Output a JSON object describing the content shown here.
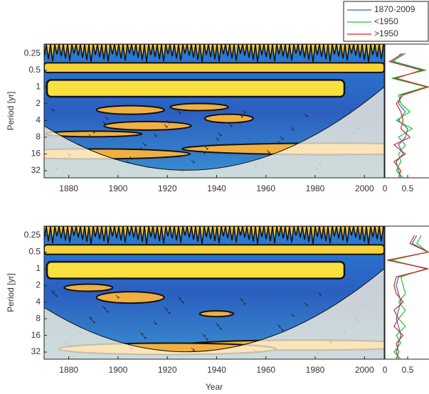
{
  "chart_data": [
    {
      "type": "heatmap",
      "y_label": "Period [yr]",
      "xlim": [
        1870,
        2008
      ],
      "ylim": [
        0.17,
        43
      ],
      "yscale": "log",
      "xticks": [
        1880,
        1900,
        1920,
        1940,
        1960,
        1980,
        2000
      ],
      "yticks": [
        0.25,
        0.5,
        1,
        2,
        4,
        8,
        16,
        32
      ]
    },
    {
      "type": "line",
      "xlim": [
        0,
        1
      ],
      "ylim": [
        0.17,
        43
      ],
      "yscale": "log",
      "xticks": [
        0,
        0.5
      ],
      "y": [
        0.25,
        0.35,
        0.5,
        0.7,
        1,
        1.4,
        2,
        2.8,
        4,
        5.6,
        8,
        11,
        16,
        22,
        32,
        43
      ],
      "legend": "upper right",
      "series": [
        {
          "name": "1870-2009",
          "color": "#1f6fc0",
          "values": [
            0.45,
            0.15,
            0.85,
            0.2,
            0.95,
            0.35,
            0.3,
            0.45,
            0.3,
            0.5,
            0.45,
            0.3,
            0.4,
            0.25,
            0.3,
            0.35
          ]
        },
        {
          "name": "<1950",
          "color": "#22c422",
          "values": [
            0.35,
            0.2,
            0.9,
            0.15,
            0.9,
            0.3,
            0.35,
            0.55,
            0.25,
            0.6,
            0.3,
            0.45,
            0.3,
            0.35,
            0.25,
            0.4
          ]
        },
        {
          "name": ">1950",
          "color": "#e02020",
          "values": [
            0.4,
            0.1,
            0.8,
            0.25,
            0.95,
            0.4,
            0.25,
            0.35,
            0.4,
            0.35,
            0.55,
            0.2,
            0.45,
            0.2,
            0.35,
            0.3
          ]
        }
      ]
    },
    {
      "type": "heatmap",
      "x_label": "Year",
      "y_label": "Period [yr]",
      "xlim": [
        1870,
        2008
      ],
      "ylim": [
        0.17,
        43
      ],
      "yscale": "log",
      "xticks": [
        1880,
        1900,
        1920,
        1940,
        1960,
        1980,
        2000
      ],
      "yticks": [
        0.25,
        0.5,
        1,
        2,
        4,
        8,
        16,
        32
      ]
    },
    {
      "type": "line",
      "xlim": [
        0,
        1
      ],
      "ylim": [
        0.17,
        43
      ],
      "yscale": "log",
      "xticks": [
        0,
        0.5
      ],
      "y": [
        0.25,
        0.35,
        0.5,
        0.7,
        1,
        1.4,
        2,
        2.8,
        4,
        5.6,
        8,
        11,
        16,
        22,
        32,
        43
      ],
      "series": [
        {
          "color": "#1f6fc0",
          "values": [
            0.7,
            0.6,
            0.95,
            0.1,
            0.95,
            0.3,
            0.25,
            0.3,
            0.35,
            0.3,
            0.25,
            0.3,
            0.35,
            0.3,
            0.25,
            0.3
          ]
        },
        {
          "color": "#22c422",
          "values": [
            0.8,
            0.7,
            0.95,
            0.15,
            0.9,
            0.35,
            0.4,
            0.45,
            0.3,
            0.45,
            0.3,
            0.45,
            0.25,
            0.35,
            0.2,
            0.35
          ]
        },
        {
          "color": "#e02020",
          "values": [
            0.65,
            0.55,
            0.95,
            0.05,
            0.95,
            0.25,
            0.2,
            0.25,
            0.4,
            0.2,
            0.3,
            0.2,
            0.4,
            0.25,
            0.3,
            0.25
          ]
        }
      ]
    }
  ]
}
